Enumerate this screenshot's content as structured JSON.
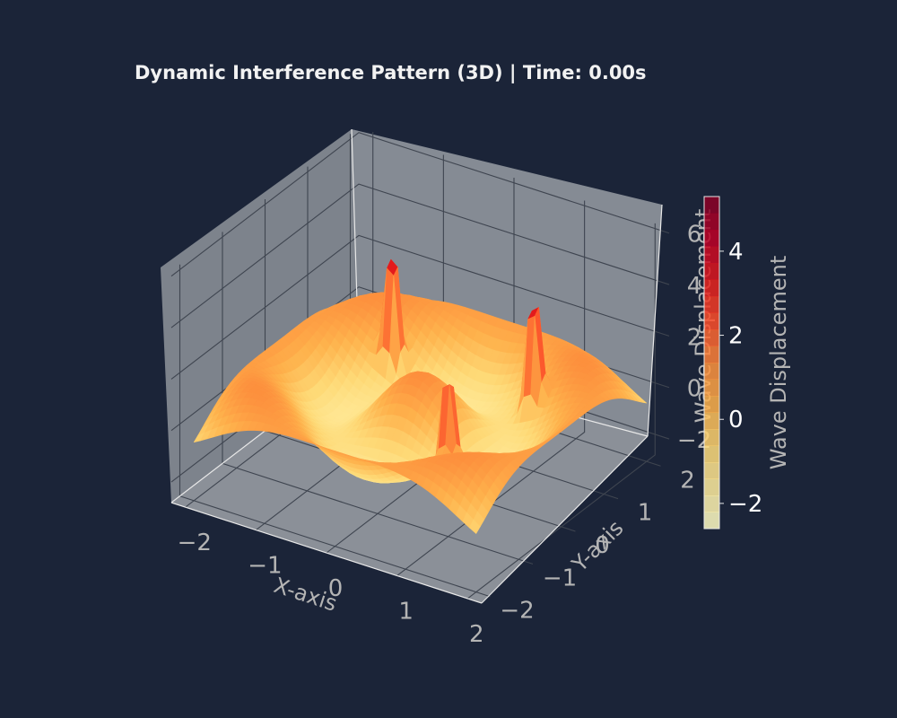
{
  "chart_data": {
    "type": "surface3d",
    "title": "Dynamic Interference Pattern (3D) | Time: 0.00s",
    "xlabel": "X-axis",
    "ylabel": "Y-axis",
    "zlabel": "Wave Displacement",
    "colorbar_label": "Wave Displacement",
    "x_ticks": [
      "−2",
      "−1",
      "0",
      "1",
      "2"
    ],
    "y_ticks": [
      "−2",
      "−1",
      "0",
      "1",
      "2"
    ],
    "z_ticks": [
      "−2",
      "0",
      "2",
      "4",
      "6"
    ],
    "colorbar_ticks": [
      "−2",
      "0",
      "2",
      "4"
    ],
    "xlim": [
      -2.2,
      2.2
    ],
    "ylim": [
      -2.2,
      2.2
    ],
    "zlim": [
      -2.8,
      6.2
    ],
    "colorbar_range": [
      -2.6,
      5.3
    ],
    "colormap": "YlOrRd",
    "peaks": [
      {
        "x": -1.0,
        "y": 1.0,
        "z": 6.0
      },
      {
        "x": 1.0,
        "y": 1.0,
        "z": 6.0
      },
      {
        "x": 1.0,
        "y": -1.0,
        "z": 5.5
      }
    ],
    "grid": true,
    "colors": {
      "figure_background": "#1b2438",
      "pane": "#858b94",
      "gridline": "#3f4550",
      "text": "#b4b4b4",
      "title": "#f2f2f2"
    }
  }
}
